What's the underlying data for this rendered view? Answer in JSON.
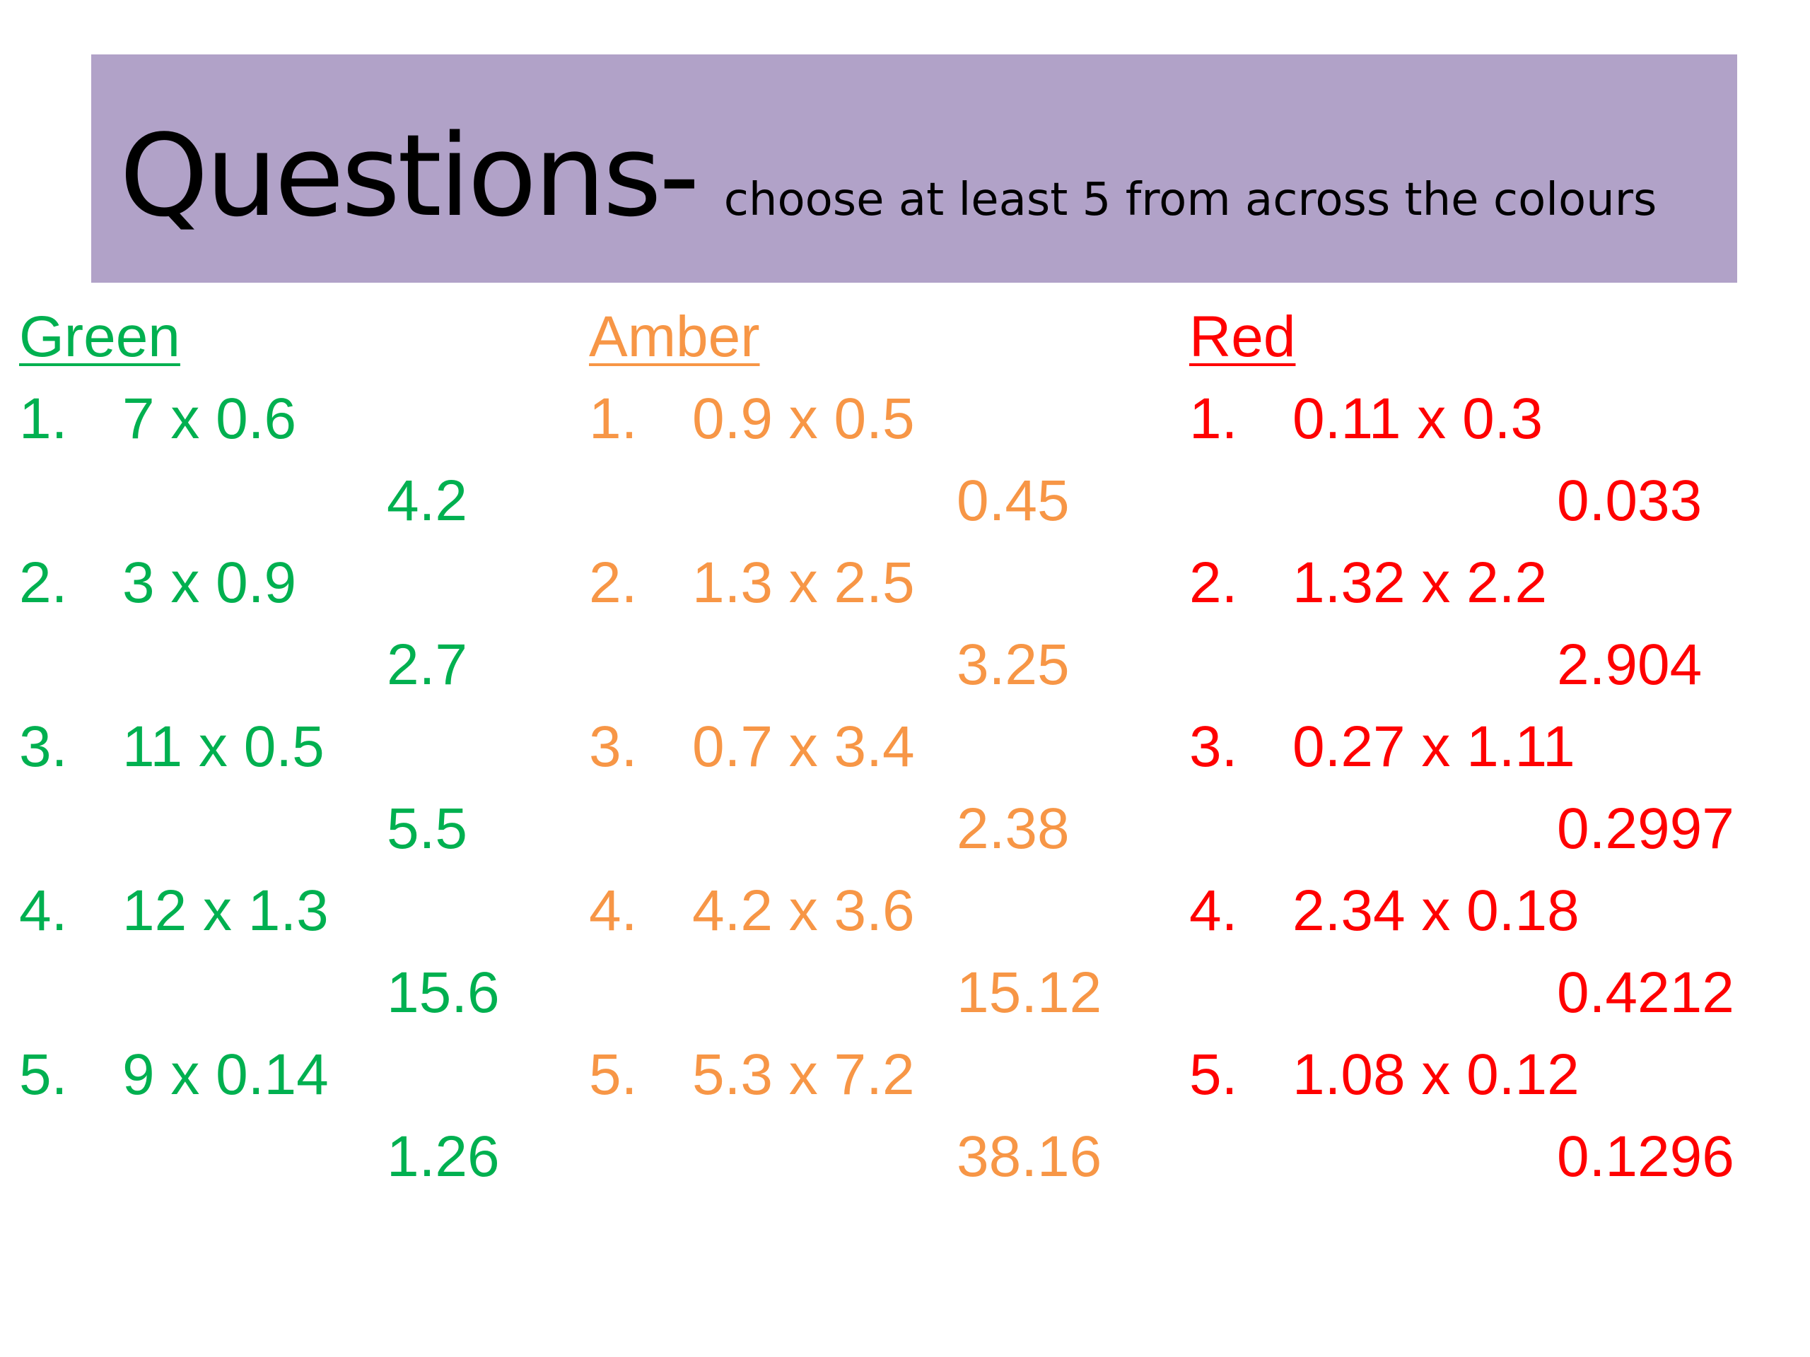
{
  "banner": {
    "title": "Questions-",
    "subtitle": "choose at least 5 from across the colours",
    "background": "#b1a2c8"
  },
  "columns": [
    {
      "heading": "Green",
      "color": "#00b050",
      "questions": [
        {
          "number": "1.",
          "expression": "7 x 0.6",
          "answer": "4.2"
        },
        {
          "number": "2.",
          "expression": "3 x 0.9",
          "answer": "2.7"
        },
        {
          "number": "3.",
          "expression": "11 x 0.5",
          "answer": "5.5"
        },
        {
          "number": "4.",
          "expression": "12 x 1.3",
          "answer": "15.6"
        },
        {
          "number": "5.",
          "expression": "9 x 0.14",
          "answer": "1.26"
        }
      ]
    },
    {
      "heading": "Amber",
      "color": "#f79646",
      "questions": [
        {
          "number": "1.",
          "expression": "0.9 x 0.5",
          "answer": "0.45"
        },
        {
          "number": "2.",
          "expression": "1.3 x 2.5",
          "answer": "3.25"
        },
        {
          "number": "3.",
          "expression": "0.7 x 3.4",
          "answer": "2.38"
        },
        {
          "number": "4.",
          "expression": "4.2 x 3.6",
          "answer": "15.12"
        },
        {
          "number": "5.",
          "expression": "5.3 x 7.2",
          "answer": "38.16"
        }
      ]
    },
    {
      "heading": "Red",
      "color": "#ff0000",
      "questions": [
        {
          "number": "1.",
          "expression": "0.11 x 0.3",
          "answer": "0.033"
        },
        {
          "number": "2.",
          "expression": "1.32 x 2.2",
          "answer": "2.904"
        },
        {
          "number": "3.",
          "expression": "0.27 x 1.11",
          "answer": "0.2997"
        },
        {
          "number": "4.",
          "expression": "2.34 x 0.18",
          "answer": "0.4212"
        },
        {
          "number": "5.",
          "expression": "1.08 x 0.12",
          "answer": "0.1296"
        }
      ]
    }
  ]
}
